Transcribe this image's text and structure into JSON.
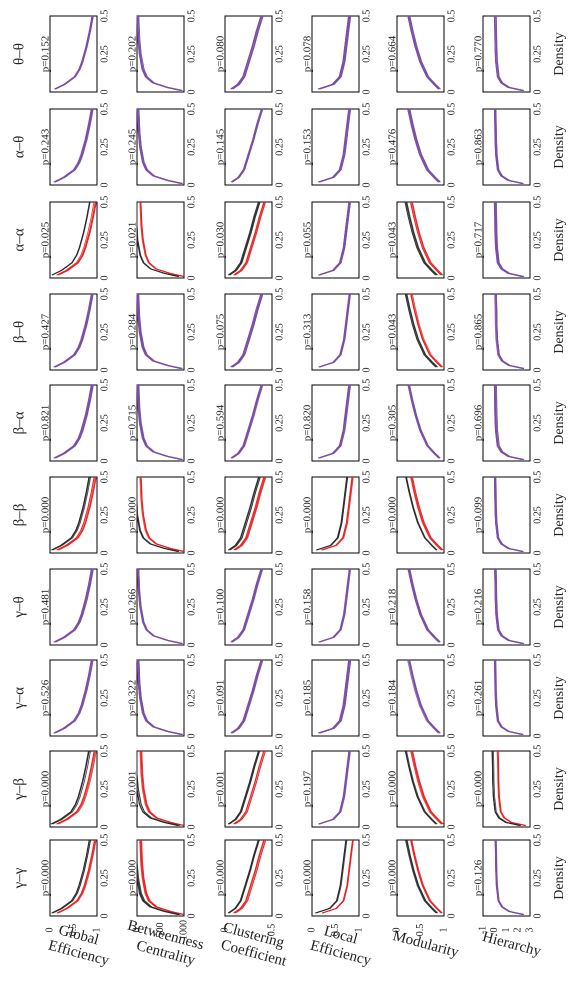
{
  "figure": {
    "colors": {
      "significant_a": "#e8201f",
      "significant_b": "#2a2a2a",
      "non_significant": "#7a4fa6"
    }
  },
  "chart_data": {
    "type": "line",
    "layout": "small-multiples grid, rotated 90 degrees",
    "columns": [
      "γ–γ",
      "γ–β",
      "γ–α",
      "γ–θ",
      "β–β",
      "β–α",
      "β–θ",
      "α–α",
      "α–θ",
      "θ–θ"
    ],
    "rows": [
      {
        "lines": [
          "Global",
          "Efficiency"
        ],
        "y_ticks": [
          "1",
          "0.5",
          "0"
        ],
        "ylim": [
          0,
          1
        ]
      },
      {
        "lines": [
          "Betweenness",
          "Centrality"
        ],
        "y_ticks": [
          "1000",
          "500",
          "0"
        ],
        "ylim": [
          0,
          1000
        ]
      },
      {
        "lines": [
          "Clustering",
          "Coefficient"
        ],
        "y_ticks": [
          "0.5",
          "0"
        ],
        "ylim": [
          0,
          0.7
        ]
      },
      {
        "lines": [
          "Local",
          "Efficiency"
        ],
        "y_ticks": [
          "1",
          "0.5",
          "0"
        ],
        "ylim": [
          0,
          1
        ]
      },
      {
        "lines": [
          "Modularity"
        ],
        "y_ticks": [
          "1",
          "0.5",
          "0"
        ],
        "ylim": [
          0,
          1
        ]
      },
      {
        "lines": [
          "Hierarchy"
        ],
        "y_ticks": [
          "3",
          "2",
          "1",
          "0",
          "-1"
        ],
        "ylim": [
          -1,
          3
        ]
      }
    ],
    "x_ticks": [
      "0",
      "0.25",
      "0.5"
    ],
    "xlabel": "Density",
    "xlim": [
      0,
      0.5
    ],
    "p_values": [
      [
        "p=0.000",
        "p=0.000",
        "p=0.000",
        "p=0.000",
        "p=0.000",
        "p=0.126"
      ],
      [
        "p=0.000",
        "p=0.001",
        "p=0.001",
        "p=0.197",
        "p=0.000",
        "p=0.000"
      ],
      [
        "p=0.526",
        "p=0.322",
        "p=0.091",
        "p=0.185",
        "p=0.184",
        "p=0.261"
      ],
      [
        "p=0.481",
        "p=0.266",
        "p=0.100",
        "p=0.158",
        "p=0.218",
        "p=0.216"
      ],
      [
        "p=0.000",
        "p=0.000",
        "p=0.000",
        "p=0.000",
        "p=0.000",
        "p=0.099"
      ],
      [
        "p=0.821",
        "p=0.715",
        "p=0.594",
        "p=0.820",
        "p=0.305",
        "p=0.696"
      ],
      [
        "p=0.427",
        "p=0.284",
        "p=0.075",
        "p=0.313",
        "p=0.043",
        "p=0.865"
      ],
      [
        "p=0.025",
        "p=0.021",
        "p=0.030",
        "p=0.055",
        "p=0.043",
        "p=0.717"
      ],
      [
        "p=0.243",
        "p=0.245",
        "p=0.145",
        "p=0.153",
        "p=0.476",
        "p=0.863"
      ],
      [
        "p=0.152",
        "p=0.202",
        "p=0.080",
        "p=0.078",
        "p=0.664",
        "p=0.770"
      ]
    ],
    "curve_color_mode": [
      [
        "sig",
        "sig",
        "sig",
        "sig",
        "sig",
        "ns"
      ],
      [
        "sig",
        "sig",
        "sig",
        "ns",
        "sig",
        "sig"
      ],
      [
        "ns",
        "ns",
        "ns",
        "ns",
        "ns",
        "ns"
      ],
      [
        "ns",
        "ns",
        "ns",
        "ns",
        "ns",
        "ns"
      ],
      [
        "sig",
        "sig",
        "sig",
        "sig",
        "sig",
        "ns"
      ],
      [
        "ns",
        "ns",
        "ns",
        "ns",
        "ns",
        "ns"
      ],
      [
        "ns",
        "ns",
        "ns",
        "ns",
        "sig",
        "ns"
      ],
      [
        "sig",
        "sig",
        "sig",
        "ns",
        "sig",
        "ns"
      ],
      [
        "ns",
        "ns",
        "ns",
        "ns",
        "ns",
        "ns"
      ],
      [
        "ns",
        "ns",
        "ns",
        "ns",
        "ns",
        "ns"
      ]
    ],
    "curve_profiles": {
      "Global Efficiency": {
        "x": [
          0.02,
          0.05,
          0.1,
          0.15,
          0.2,
          0.3,
          0.4,
          0.5
        ],
        "y": [
          0.1,
          0.3,
          0.52,
          0.62,
          0.68,
          0.77,
          0.84,
          0.9
        ]
      },
      "Betweenness Centrality": {
        "x": [
          0.01,
          0.03,
          0.06,
          0.1,
          0.15,
          0.25,
          0.35,
          0.5
        ],
        "y": [
          950,
          650,
          350,
          200,
          130,
          70,
          40,
          20
        ]
      },
      "Clustering Coefficient": {
        "x": [
          0.02,
          0.05,
          0.1,
          0.2,
          0.3,
          0.4,
          0.5
        ],
        "y": [
          0.1,
          0.2,
          0.28,
          0.35,
          0.42,
          0.48,
          0.55
        ]
      },
      "Local Efficiency": {
        "x": [
          0.02,
          0.05,
          0.1,
          0.2,
          0.3,
          0.4,
          0.5
        ],
        "y": [
          0.15,
          0.45,
          0.6,
          0.68,
          0.72,
          0.76,
          0.8
        ]
      },
      "Modularity": {
        "x": [
          0.02,
          0.05,
          0.1,
          0.2,
          0.3,
          0.4,
          0.5
        ],
        "y": [
          0.9,
          0.8,
          0.65,
          0.5,
          0.4,
          0.32,
          0.25
        ]
      },
      "Hierarchy": {
        "x": [
          0.01,
          0.03,
          0.06,
          0.1,
          0.2,
          0.3,
          0.4,
          0.5
        ],
        "y": [
          2.4,
          1.2,
          0.6,
          0.3,
          0.15,
          0.1,
          0.08,
          0.05
        ]
      }
    },
    "curves_per_panel": 10,
    "legend": "none",
    "grid": false
  }
}
